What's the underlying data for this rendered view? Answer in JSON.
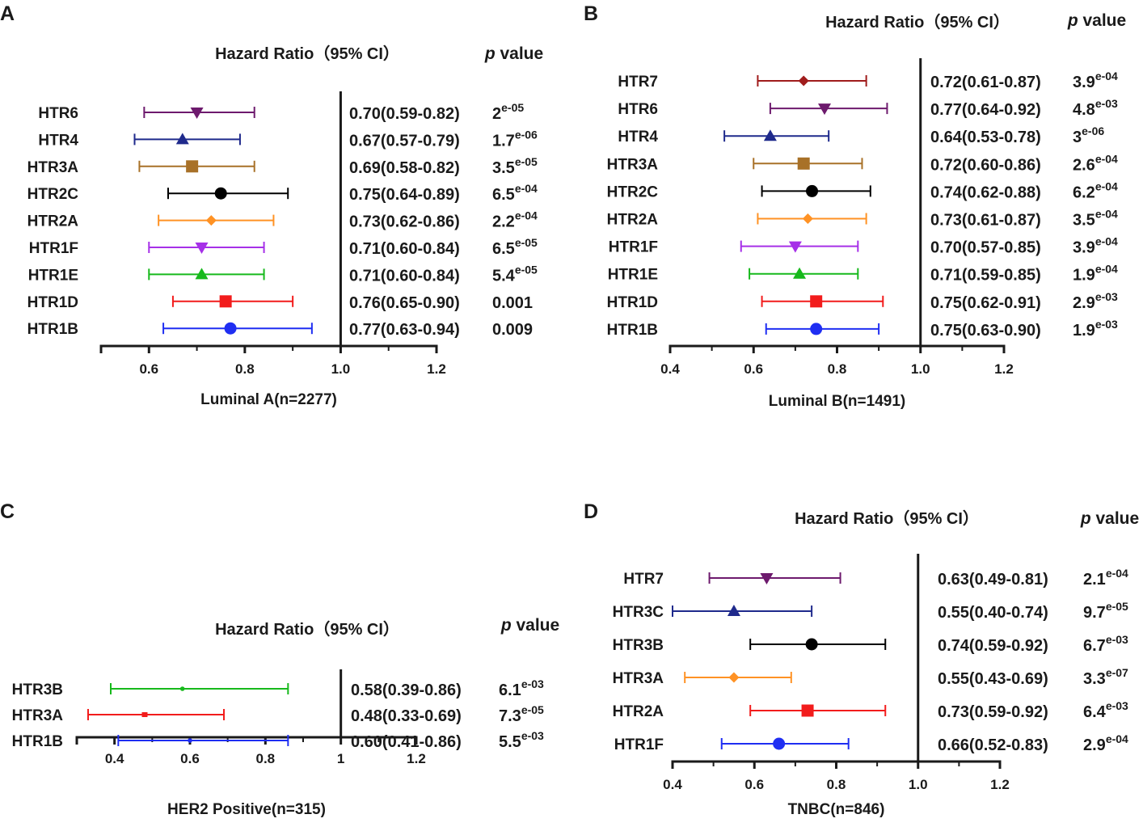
{
  "figure": {
    "background": "#ffffff",
    "text_color": "#1a1a1a"
  },
  "chart_data": [
    {
      "panel": "A",
      "type": "forest",
      "header": "Hazard Ratio（95% CI）",
      "pvalue_header": {
        "p": "p",
        "rest": " value"
      },
      "xlabel": "Luminal A(n=2277)",
      "xlim": [
        0.5,
        1.2
      ],
      "ticks": [
        0.6,
        0.8,
        1.0,
        1.2
      ],
      "tick_labels": [
        "0.6",
        "0.8",
        "1.0",
        "1.2"
      ],
      "reference_line": 1.0,
      "rows": [
        {
          "gene": "HTR6",
          "hr": 0.7,
          "lo": 0.59,
          "hi": 0.82,
          "hr_text": "0.70(0.59-0.82)",
          "p_base": "2",
          "p_exp": "e-05",
          "color": "#6d1a6d",
          "marker": "triangle-down"
        },
        {
          "gene": "HTR4",
          "hr": 0.67,
          "lo": 0.57,
          "hi": 0.79,
          "hr_text": "0.67(0.57-0.79)",
          "p_base": "1.7",
          "p_exp": "e-06",
          "color": "#1f2a8c",
          "marker": "triangle-up"
        },
        {
          "gene": "HTR3A",
          "hr": 0.69,
          "lo": 0.58,
          "hi": 0.82,
          "hr_text": "0.69(0.58-0.82)",
          "p_base": "3.5",
          "p_exp": "e-05",
          "color": "#a87128",
          "marker": "square"
        },
        {
          "gene": "HTR2C",
          "hr": 0.75,
          "lo": 0.64,
          "hi": 0.89,
          "hr_text": "0.75(0.64-0.89)",
          "p_base": "6.5",
          "p_exp": "e-04",
          "color": "#000000",
          "marker": "circle"
        },
        {
          "gene": "HTR2A",
          "hr": 0.73,
          "lo": 0.62,
          "hi": 0.86,
          "hr_text": "0.73(0.62-0.86)",
          "p_base": "2.2",
          "p_exp": "e-04",
          "color": "#ff9224",
          "marker": "diamond"
        },
        {
          "gene": "HTR1F",
          "hr": 0.71,
          "lo": 0.6,
          "hi": 0.84,
          "hr_text": "0.71(0.60-0.84)",
          "p_base": "6.5",
          "p_exp": "e-05",
          "color": "#a630e8",
          "marker": "triangle-down"
        },
        {
          "gene": "HTR1E",
          "hr": 0.71,
          "lo": 0.6,
          "hi": 0.84,
          "hr_text": "0.71(0.60-0.84)",
          "p_base": "5.4",
          "p_exp": "e-05",
          "color": "#17b91c",
          "marker": "triangle-up"
        },
        {
          "gene": "HTR1D",
          "hr": 0.76,
          "lo": 0.65,
          "hi": 0.9,
          "hr_text": "0.76(0.65-0.90)",
          "p_base": "0.001",
          "p_exp": "",
          "color": "#f21c1c",
          "marker": "square"
        },
        {
          "gene": "HTR1B",
          "hr": 0.77,
          "lo": 0.63,
          "hi": 0.94,
          "hr_text": "0.77(0.63-0.94)",
          "p_base": "0.009",
          "p_exp": "",
          "color": "#1f2ef2",
          "marker": "circle"
        }
      ]
    },
    {
      "panel": "B",
      "type": "forest",
      "header": "Hazard Ratio（95% CI）",
      "pvalue_header": {
        "p": "p",
        "rest": " value"
      },
      "xlabel": "Luminal B(n=1491)",
      "xlim": [
        0.4,
        1.2
      ],
      "ticks": [
        0.4,
        0.6,
        0.8,
        1.0,
        1.2
      ],
      "tick_labels": [
        "0.4",
        "0.6",
        "0.8",
        "1.0",
        "1.2"
      ],
      "reference_line": 1.0,
      "rows": [
        {
          "gene": "HTR7",
          "hr": 0.72,
          "lo": 0.61,
          "hi": 0.87,
          "hr_text": "0.72(0.61-0.87)",
          "p_base": "3.9",
          "p_exp": "e-04",
          "color": "#a01c1c",
          "marker": "diamond"
        },
        {
          "gene": "HTR6",
          "hr": 0.77,
          "lo": 0.64,
          "hi": 0.92,
          "hr_text": "0.77(0.64-0.92)",
          "p_base": "4.8",
          "p_exp": "e-03",
          "color": "#6d1a6d",
          "marker": "triangle-down"
        },
        {
          "gene": "HTR4",
          "hr": 0.64,
          "lo": 0.53,
          "hi": 0.78,
          "hr_text": "0.64(0.53-0.78)",
          "p_base": "3",
          "p_exp": "e-06",
          "color": "#1f2a8c",
          "marker": "triangle-up"
        },
        {
          "gene": "HTR3A",
          "hr": 0.72,
          "lo": 0.6,
          "hi": 0.86,
          "hr_text": "0.72(0.60-0.86)",
          "p_base": "2.6",
          "p_exp": "e-04",
          "color": "#a87128",
          "marker": "square"
        },
        {
          "gene": "HTR2C",
          "hr": 0.74,
          "lo": 0.62,
          "hi": 0.88,
          "hr_text": "0.74(0.62-0.88)",
          "p_base": "6.2",
          "p_exp": "e-04",
          "color": "#000000",
          "marker": "circle"
        },
        {
          "gene": "HTR2A",
          "hr": 0.73,
          "lo": 0.61,
          "hi": 0.87,
          "hr_text": "0.73(0.61-0.87)",
          "p_base": "3.5",
          "p_exp": "e-04",
          "color": "#ff9224",
          "marker": "diamond"
        },
        {
          "gene": "HTR1F",
          "hr": 0.7,
          "lo": 0.57,
          "hi": 0.85,
          "hr_text": "0.70(0.57-0.85)",
          "p_base": "3.9",
          "p_exp": "e-04",
          "color": "#a630e8",
          "marker": "triangle-down"
        },
        {
          "gene": "HTR1E",
          "hr": 0.71,
          "lo": 0.59,
          "hi": 0.85,
          "hr_text": "0.71(0.59-0.85)",
          "p_base": "1.9",
          "p_exp": "e-04",
          "color": "#17b91c",
          "marker": "triangle-up"
        },
        {
          "gene": "HTR1D",
          "hr": 0.75,
          "lo": 0.62,
          "hi": 0.91,
          "hr_text": "0.75(0.62-0.91)",
          "p_base": "2.9",
          "p_exp": "e-03",
          "color": "#f21c1c",
          "marker": "square"
        },
        {
          "gene": "HTR1B",
          "hr": 0.75,
          "lo": 0.63,
          "hi": 0.9,
          "hr_text": "0.75(0.63-0.90)",
          "p_base": "1.9",
          "p_exp": "e-03",
          "color": "#1f2ef2",
          "marker": "circle"
        }
      ]
    },
    {
      "panel": "C",
      "type": "forest",
      "header": "Hazard Ratio（95% CI）",
      "pvalue_header": {
        "p": "p",
        "rest": " value"
      },
      "xlabel": "HER2 Positive(n=315)",
      "xlim": [
        0.3,
        1.2
      ],
      "ticks": [
        0.4,
        0.6,
        0.8,
        1.0,
        1.2
      ],
      "tick_labels": [
        "0.4",
        "0.6",
        "0.8",
        "1",
        "1.2"
      ],
      "reference_line": 1.0,
      "rows": [
        {
          "gene": "HTR3B",
          "hr": 0.58,
          "lo": 0.39,
          "hi": 0.86,
          "hr_text": "0.58(0.39-0.86)",
          "p_base": "6.1",
          "p_exp": "e-03",
          "color": "#17b91c",
          "marker": "small-circle"
        },
        {
          "gene": "HTR3A",
          "hr": 0.48,
          "lo": 0.33,
          "hi": 0.69,
          "hr_text": "0.48(0.33-0.69)",
          "p_base": "7.3",
          "p_exp": "e-05",
          "color": "#f21c1c",
          "marker": "small-square"
        },
        {
          "gene": "HTR1B",
          "hr": 0.6,
          "lo": 0.41,
          "hi": 0.86,
          "hr_text": "0.60(0.41-0.86)",
          "p_base": "5.5",
          "p_exp": "e-03",
          "color": "#1f2ef2",
          "marker": "small-circle"
        }
      ]
    },
    {
      "panel": "D",
      "type": "forest",
      "header": "Hazard Ratio（95% CI）",
      "pvalue_header": {
        "p": "p",
        "rest": " value"
      },
      "xlabel": "TNBC(n=846)",
      "xlim": [
        0.4,
        1.2
      ],
      "ticks": [
        0.4,
        0.6,
        0.8,
        1.0,
        1.2
      ],
      "tick_labels": [
        "0.4",
        "0.6",
        "0.8",
        "1.0",
        "1.2"
      ],
      "reference_line": 1.0,
      "rows": [
        {
          "gene": "HTR7",
          "hr": 0.63,
          "lo": 0.49,
          "hi": 0.81,
          "hr_text": "0.63(0.49-0.81)",
          "p_base": "2.1",
          "p_exp": "e-04",
          "color": "#6d1a6d",
          "marker": "triangle-down"
        },
        {
          "gene": "HTR3C",
          "hr": 0.55,
          "lo": 0.4,
          "hi": 0.74,
          "hr_text": "0.55(0.40-0.74)",
          "p_base": "9.7",
          "p_exp": "e-05",
          "color": "#1f2a8c",
          "marker": "triangle-up"
        },
        {
          "gene": "HTR3B",
          "hr": 0.74,
          "lo": 0.59,
          "hi": 0.92,
          "hr_text": "0.74(0.59-0.92)",
          "p_base": "6.7",
          "p_exp": "e-03",
          "color": "#000000",
          "marker": "circle"
        },
        {
          "gene": "HTR3A",
          "hr": 0.55,
          "lo": 0.43,
          "hi": 0.69,
          "hr_text": "0.55(0.43-0.69)",
          "p_base": "3.3",
          "p_exp": "e-07",
          "color": "#ff9224",
          "marker": "diamond"
        },
        {
          "gene": "HTR2A",
          "hr": 0.73,
          "lo": 0.59,
          "hi": 0.92,
          "hr_text": "0.73(0.59-0.92)",
          "p_base": "6.4",
          "p_exp": "e-03",
          "color": "#f21c1c",
          "marker": "square"
        },
        {
          "gene": "HTR1F",
          "hr": 0.66,
          "lo": 0.52,
          "hi": 0.83,
          "hr_text": "0.66(0.52-0.83)",
          "p_base": "2.9",
          "p_exp": "e-04",
          "color": "#1f2ef2",
          "marker": "circle"
        }
      ]
    }
  ]
}
